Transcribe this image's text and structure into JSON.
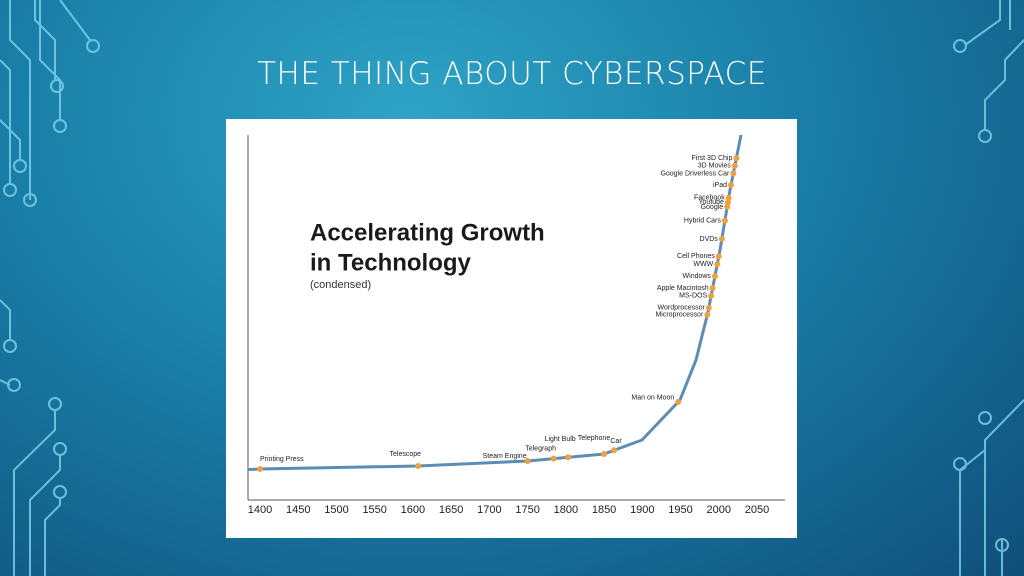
{
  "slide_title": "THE THING ABOUT CYBERSPACE",
  "chart_data": {
    "type": "line",
    "title": "Accelerating Growth",
    "title_line2": "in Technology",
    "subtitle": "(condensed)",
    "color": "#5b8db5",
    "marker_color": "#f0a040",
    "xlim": [
      1400,
      2050
    ],
    "xticks": [
      1400,
      1450,
      1500,
      1550,
      1600,
      1650,
      1700,
      1750,
      1800,
      1850,
      1900,
      1950,
      2000,
      2050
    ],
    "points": [
      {
        "label": "Printing Press",
        "x": 1400
      },
      {
        "label": "Telescope",
        "x": 1607
      },
      {
        "label": "Steam Engine",
        "x": 1750
      },
      {
        "label": "Telegraph",
        "x": 1784
      },
      {
        "label": "Light Bulb",
        "x": 1803
      },
      {
        "label": "Telephone",
        "x": 1850
      },
      {
        "label": "Car",
        "x": 1863
      },
      {
        "label": "Man on Moon",
        "x": 1947
      },
      {
        "label": "Microprocessor",
        "x": 1985
      },
      {
        "label": "Wordprocessor",
        "x": 1987
      },
      {
        "label": "MS-DOS",
        "x": 1990
      },
      {
        "label": "Apple Macintosh",
        "x": 1992
      },
      {
        "label": "Windows",
        "x": 1995
      },
      {
        "label": "WWW",
        "x": 1998
      },
      {
        "label": "Cell Phones",
        "x": 2000
      },
      {
        "label": "DVDs",
        "x": 2004
      },
      {
        "label": "Hybrid Cars",
        "x": 2008
      },
      {
        "label": "Google",
        "x": 2011
      },
      {
        "label": "Youtube",
        "x": 2012
      },
      {
        "label": "Facebook",
        "x": 2013
      },
      {
        "label": "iPad",
        "x": 2016
      },
      {
        "label": "Google Driverless Car",
        "x": 2019
      },
      {
        "label": "3D Movies",
        "x": 2021
      },
      {
        "label": "First 3D Chip",
        "x": 2023
      }
    ]
  }
}
